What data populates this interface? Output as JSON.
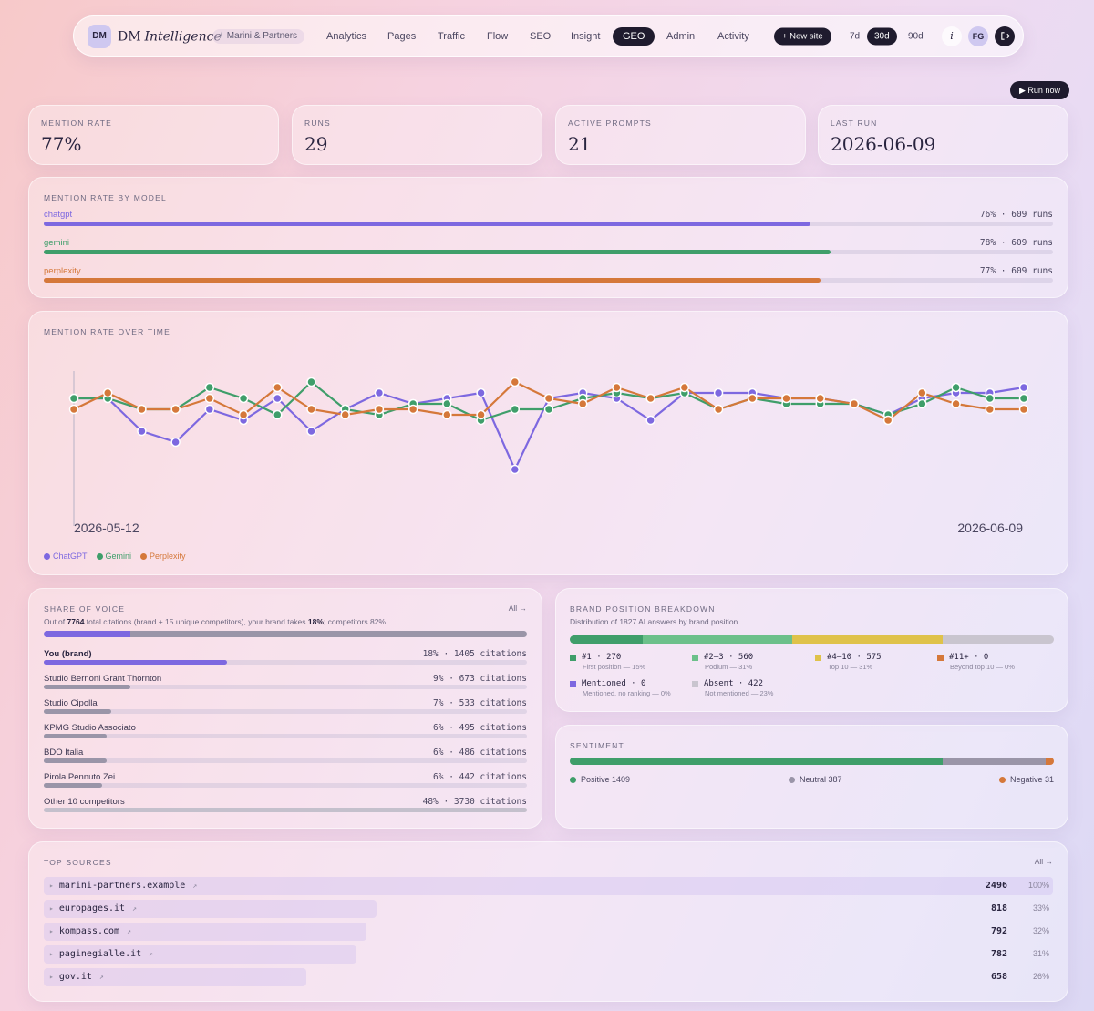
{
  "nav": {
    "badge": "DM",
    "brand_dm": "DM",
    "brand_intel": "Intelligence",
    "crumb": "Marini & Partners",
    "items": [
      "Analytics",
      "Pages",
      "Traffic",
      "Flow",
      "SEO",
      "Insight",
      "GEO",
      "Admin",
      "Activity"
    ],
    "active": "GEO",
    "new_site": "+ New site",
    "ranges": [
      "7d",
      "30d",
      "90d"
    ],
    "active_range": "30d",
    "info": "i",
    "user": "FG"
  },
  "run_now": "▶ Run now",
  "kpis": [
    {
      "label": "Mention rate",
      "value": "77%"
    },
    {
      "label": "Runs",
      "value": "29"
    },
    {
      "label": "Active prompts",
      "value": "21"
    },
    {
      "label": "Last run",
      "value": "2026-06-09"
    }
  ],
  "model_rates": {
    "title": "Mention rate by model",
    "rows": [
      {
        "name": "chatgpt",
        "stat": "76% · 609 runs",
        "fraction": 0.76,
        "color": "#7d68e0"
      },
      {
        "name": "gemini",
        "stat": "78% · 609 runs",
        "fraction": 0.78,
        "color": "#3f9e6a"
      },
      {
        "name": "perplexity",
        "stat": "77% · 609 runs",
        "fraction": 0.77,
        "color": "#d5783a"
      }
    ]
  },
  "chart": {
    "title": "Mention rate over time",
    "x_start": "2026-05-12",
    "x_end": "2026-06-09",
    "legend": [
      "ChatGPT",
      "Gemini",
      "Perplexity"
    ]
  },
  "chart_data": {
    "type": "line",
    "x": [
      "2026-05-12",
      "2026-05-13",
      "2026-05-14",
      "2026-05-15",
      "2026-05-16",
      "2026-05-17",
      "2026-05-18",
      "2026-05-19",
      "2026-05-20",
      "2026-05-21",
      "2026-05-22",
      "2026-05-23",
      "2026-05-24",
      "2026-05-25",
      "2026-05-26",
      "2026-05-27",
      "2026-05-28",
      "2026-05-29",
      "2026-05-30",
      "2026-05-31",
      "2026-06-01",
      "2026-06-02",
      "2026-06-03",
      "2026-06-04",
      "2026-06-05",
      "2026-06-06",
      "2026-06-07",
      "2026-06-08",
      "2026-06-09"
    ],
    "series": [
      {
        "name": "ChatGPT",
        "color": "#7d68e0",
        "values": [
          80,
          80,
          74,
          72,
          78,
          76,
          80,
          74,
          78,
          81,
          79,
          80,
          81,
          67,
          80,
          81,
          80,
          76,
          81,
          81,
          81,
          80,
          80,
          79,
          77,
          80,
          81,
          81,
          82
        ]
      },
      {
        "name": "Gemini",
        "color": "#3f9e6a",
        "values": [
          80,
          80,
          78,
          78,
          82,
          80,
          77,
          83,
          78,
          77,
          79,
          79,
          76,
          78,
          78,
          80,
          81,
          80,
          81,
          78,
          80,
          79,
          79,
          79,
          77,
          79,
          82,
          80,
          80
        ]
      },
      {
        "name": "Perplexity",
        "color": "#d5783a",
        "values": [
          78,
          81,
          78,
          78,
          80,
          77,
          82,
          78,
          77,
          78,
          78,
          77,
          77,
          83,
          80,
          79,
          82,
          80,
          82,
          78,
          80,
          80,
          80,
          79,
          76,
          81,
          79,
          78,
          78
        ]
      }
    ],
    "ylim": [
      60,
      90
    ],
    "legend_position": "bottom-left"
  },
  "share_of_voice": {
    "title": "Share of voice",
    "all": "All →",
    "subtitle_a": "Out of ",
    "subtitle_total": "7764",
    "subtitle_b": " total citations (brand + 15 unique competitors), your brand takes ",
    "subtitle_brand_pct": "18%",
    "subtitle_c": "; competitors 82%.",
    "overall": [
      {
        "fraction": 0.18,
        "color": "#7d68e0"
      },
      {
        "fraction": 0.82,
        "color": "#9a95a8"
      }
    ],
    "rows": [
      {
        "name": "You (brand)",
        "stat": "18% · 1405 citations",
        "fraction": 0.38,
        "bold": true,
        "color": "#7d68e0"
      },
      {
        "name": "Studio Bernoni Grant Thornton",
        "stat": "9% · 673 citations",
        "fraction": 0.18,
        "color": "#9a95a8"
      },
      {
        "name": "Studio Cipolla",
        "stat": "7% · 533 citations",
        "fraction": 0.14,
        "color": "#9a95a8"
      },
      {
        "name": "KPMG Studio Associato",
        "stat": "6% · 495 citations",
        "fraction": 0.13,
        "color": "#9a95a8"
      },
      {
        "name": "BDO Italia",
        "stat": "6% · 486 citations",
        "fraction": 0.13,
        "color": "#9a95a8"
      },
      {
        "name": "Pirola Pennuto Zei",
        "stat": "6% · 442 citations",
        "fraction": 0.12,
        "color": "#9a95a8"
      },
      {
        "name": "Other 10 competitors",
        "stat": "48% · 3730 citations",
        "fraction": 1.0,
        "color": "#c4c0cc"
      }
    ]
  },
  "brand_position": {
    "title": "Brand position breakdown",
    "subtitle": "Distribution of 1827 AI answers by brand position.",
    "segments": [
      {
        "fraction": 0.15,
        "color": "#3f9e6a"
      },
      {
        "fraction": 0.31,
        "color": "#6cc08a"
      },
      {
        "fraction": 0.31,
        "color": "#dfc24a"
      },
      {
        "fraction": 0.23,
        "color": "#c9c5cf"
      }
    ],
    "items": [
      {
        "title": "#1 · 270",
        "sub": "First position — 15%",
        "color": "#3f9e6a"
      },
      {
        "title": "#2–3 · 560",
        "sub": "Podium — 31%",
        "color": "#6cc08a"
      },
      {
        "title": "#4–10 · 575",
        "sub": "Top 10 — 31%",
        "color": "#dfc24a"
      },
      {
        "title": "#11+ · 0",
        "sub": "Beyond top 10 — 0%",
        "color": "#d5783a"
      },
      {
        "title": "Mentioned · 0",
        "sub": "Mentioned, no ranking — 0%",
        "color": "#7d68e0"
      },
      {
        "title": "Absent · 422",
        "sub": "Not mentioned — 23%",
        "color": "#c9c5cf"
      }
    ]
  },
  "sentiment": {
    "title": "Sentiment",
    "segments": [
      {
        "fraction": 0.771,
        "color": "#3f9e6a"
      },
      {
        "fraction": 0.212,
        "color": "#9a95a8"
      },
      {
        "fraction": 0.017,
        "color": "#d5783a"
      }
    ],
    "positive": "Positive 1409",
    "neutral": "Neutral 387",
    "negative": "Negative 31"
  },
  "top_sources": {
    "title": "Top sources",
    "all": "All →",
    "rows": [
      {
        "domain": "marini-partners.example",
        "count": "2496",
        "pct": "100%",
        "fraction": 1.0
      },
      {
        "domain": "europages.it",
        "count": "818",
        "pct": "33%",
        "fraction": 0.33
      },
      {
        "domain": "kompass.com",
        "count": "792",
        "pct": "32%",
        "fraction": 0.32
      },
      {
        "domain": "paginegialle.it",
        "count": "782",
        "pct": "31%",
        "fraction": 0.31
      },
      {
        "domain": "gov.it",
        "count": "658",
        "pct": "26%",
        "fraction": 0.26
      }
    ]
  }
}
